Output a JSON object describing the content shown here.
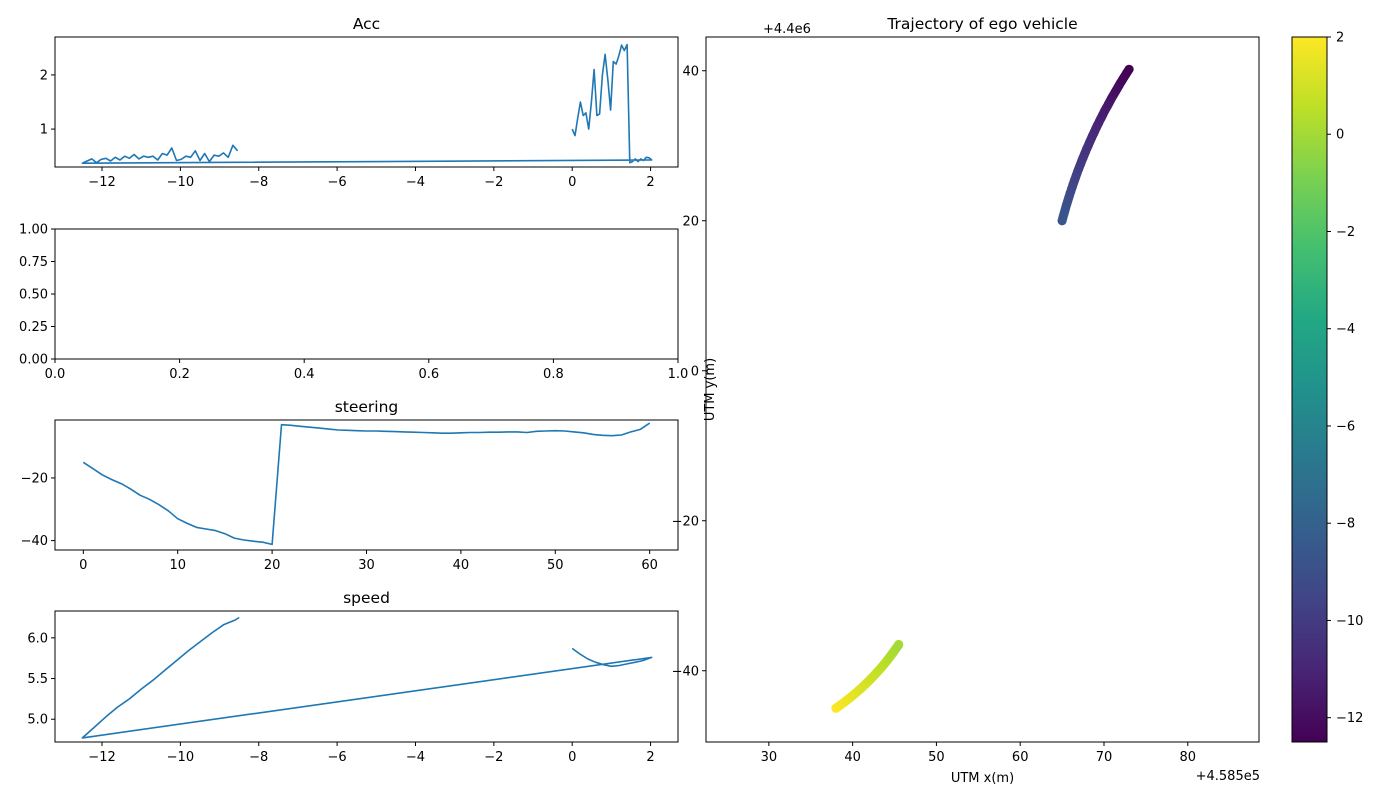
{
  "chart_data": [
    {
      "id": "acc",
      "type": "line",
      "title": "Acc",
      "xlim": [
        -13.2,
        2.7
      ],
      "ylim": [
        0.3,
        2.7
      ],
      "xticks": [
        -12,
        -10,
        -8,
        -6,
        -4,
        -2,
        0,
        2
      ],
      "yticks": [
        1,
        2
      ],
      "color": "#1f77b4",
      "series": [
        {
          "x": [
            0.0,
            0.07,
            0.14,
            0.21,
            0.28,
            0.35,
            0.42,
            0.49,
            0.56,
            0.63,
            0.7,
            0.77,
            0.84,
            0.91,
            0.98,
            1.05,
            1.12,
            1.19,
            1.26,
            1.33,
            1.4,
            1.47,
            1.54,
            1.61,
            1.68,
            1.75,
            1.82,
            1.89,
            1.96,
            2.03,
            -12.5,
            -12.38,
            -12.26,
            -12.14,
            -12.02,
            -11.9,
            -11.78,
            -11.66,
            -11.54,
            -11.42,
            -11.3,
            -11.18,
            -11.06,
            -10.94,
            -10.82,
            -10.7,
            -10.58,
            -10.46,
            -10.34,
            -10.22,
            -10.1,
            -9.98,
            -9.86,
            -9.74,
            -9.62,
            -9.5,
            -9.38,
            -9.26,
            -9.14,
            -9.02,
            -8.9,
            -8.78,
            -8.66,
            -8.54
          ],
          "y": [
            1.0,
            0.88,
            1.2,
            1.5,
            1.25,
            1.3,
            1.0,
            1.5,
            2.1,
            1.25,
            1.28,
            2.0,
            2.38,
            1.9,
            1.35,
            2.25,
            2.2,
            2.35,
            2.55,
            2.45,
            2.56,
            0.38,
            0.4,
            0.45,
            0.4,
            0.45,
            0.42,
            0.48,
            0.47,
            0.43,
            0.37,
            0.41,
            0.45,
            0.38,
            0.44,
            0.46,
            0.41,
            0.48,
            0.43,
            0.5,
            0.46,
            0.53,
            0.45,
            0.5,
            0.48,
            0.5,
            0.43,
            0.55,
            0.52,
            0.65,
            0.42,
            0.44,
            0.5,
            0.48,
            0.6,
            0.42,
            0.55,
            0.4,
            0.52,
            0.5,
            0.56,
            0.48,
            0.7,
            0.6
          ]
        }
      ]
    },
    {
      "id": "empty",
      "type": "line",
      "title": "",
      "xlim": [
        0,
        1
      ],
      "ylim": [
        0,
        1
      ],
      "xticks": [
        "0.0",
        "0.2",
        "0.4",
        "0.6",
        "0.8",
        "1.0"
      ],
      "yticks": [
        "0.00",
        "0.25",
        "0.50",
        "0.75",
        "1.00"
      ],
      "series": []
    },
    {
      "id": "steering",
      "type": "line",
      "title": "steering",
      "xlim": [
        -3,
        63
      ],
      "ylim": [
        -43,
        -1.5
      ],
      "xticks": [
        0,
        10,
        20,
        30,
        40,
        50,
        60
      ],
      "yticks": [
        -40,
        -20
      ],
      "color": "#1f77b4",
      "series": [
        {
          "x": [
            0,
            1,
            2,
            3,
            4,
            5,
            6,
            7,
            8,
            9,
            10,
            11,
            12,
            13,
            14,
            15,
            16,
            17,
            18,
            19,
            20,
            21,
            22,
            23,
            24,
            25,
            26,
            27,
            28,
            29,
            30,
            31,
            32,
            33,
            34,
            35,
            36,
            37,
            38,
            39,
            40,
            41,
            42,
            43,
            44,
            45,
            46,
            47,
            48,
            49,
            50,
            51,
            52,
            53,
            54,
            55,
            56,
            57,
            58,
            59,
            60
          ],
          "y": [
            -15,
            -17,
            -19,
            -20.5,
            -21.8,
            -23.5,
            -25.5,
            -26.8,
            -28.5,
            -30.5,
            -33,
            -34.5,
            -35.8,
            -36.3,
            -36.8,
            -37.8,
            -39.2,
            -39.8,
            -40.2,
            -40.5,
            -41.2,
            -3,
            -3.2,
            -3.5,
            -3.8,
            -4.1,
            -4.4,
            -4.7,
            -4.8,
            -4.9,
            -5.0,
            -5.0,
            -5.1,
            -5.2,
            -5.3,
            -5.4,
            -5.5,
            -5.6,
            -5.7,
            -5.7,
            -5.6,
            -5.5,
            -5.5,
            -5.4,
            -5.4,
            -5.3,
            -5.3,
            -5.5,
            -5.1,
            -5.0,
            -4.9,
            -5.0,
            -5.3,
            -5.6,
            -6.1,
            -6.4,
            -6.5,
            -6.3,
            -5.3,
            -4.5,
            -2.5
          ]
        }
      ]
    },
    {
      "id": "speed",
      "type": "line",
      "title": "speed",
      "xlim": [
        -13.2,
        2.7
      ],
      "ylim": [
        4.72,
        6.33
      ],
      "xticks": [
        -12,
        -10,
        -8,
        -6,
        -4,
        -2,
        0,
        2
      ],
      "yticks": [
        "5.0",
        "5.5",
        "6.0"
      ],
      "color": "#1f77b4",
      "series": [
        {
          "x": [
            0.0,
            0.2,
            0.4,
            0.6,
            0.8,
            1.0,
            1.2,
            1.4,
            1.6,
            1.8,
            2.03,
            -12.5,
            -12.2,
            -11.9,
            -11.6,
            -11.3,
            -11.0,
            -10.7,
            -10.4,
            -10.1,
            -9.8,
            -9.5,
            -9.2,
            -8.9,
            -8.6,
            -8.5
          ],
          "y": [
            5.87,
            5.8,
            5.74,
            5.7,
            5.67,
            5.65,
            5.66,
            5.68,
            5.7,
            5.72,
            5.76,
            4.77,
            4.9,
            5.03,
            5.15,
            5.25,
            5.37,
            5.48,
            5.6,
            5.72,
            5.84,
            5.95,
            6.06,
            6.16,
            6.22,
            6.25
          ]
        }
      ]
    },
    {
      "id": "trajectory",
      "type": "scatter",
      "title": "Trajectory of ego vehicle",
      "xlabel": "UTM x(m)",
      "ylabel": "UTM y(m)",
      "x_offset_label": "+4.585e5",
      "y_offset_label": "+4.4e6",
      "xlim": [
        22.5,
        88.5
      ],
      "ylim": [
        -49.5,
        44.5
      ],
      "xticks": [
        30,
        40,
        50,
        60,
        70,
        80
      ],
      "yticks": [
        -40,
        -20,
        0,
        20,
        40
      ],
      "colormap": "viridis",
      "color_range": [
        -12.5,
        2.0
      ],
      "colorbar_ticks": [
        -12,
        -10,
        -8,
        -6,
        -4,
        -2,
        0,
        2
      ],
      "segments": [
        {
          "x_start": 65.0,
          "y_start": 20.0,
          "x_end": 73.0,
          "y_end": 40.2,
          "c_start": -8.5,
          "c_end": -12.5,
          "bulge": -1.0
        },
        {
          "x_start": 38.0,
          "y_start": -45.0,
          "x_end": 45.5,
          "y_end": -36.5,
          "c_start": 2.0,
          "c_end": 0.0,
          "bulge": 1.2
        }
      ]
    }
  ]
}
